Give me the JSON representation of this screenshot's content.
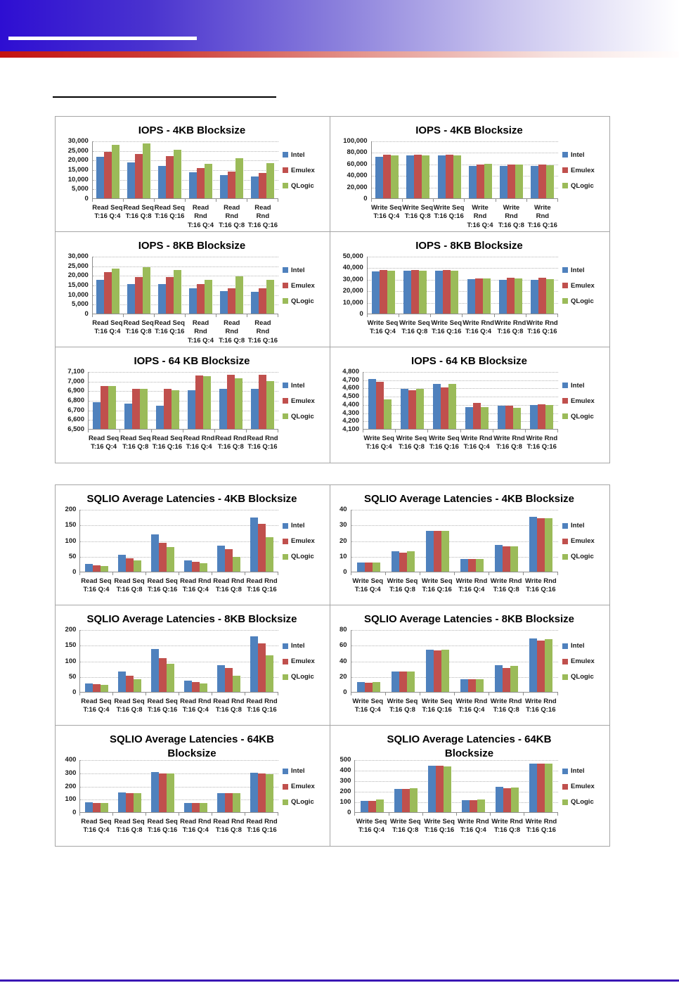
{
  "colors": {
    "intel": "#4F81BD",
    "emulex": "#C0504D",
    "qlogic": "#9BBB59",
    "gridline": "#b5b5b5",
    "axis_line": "#8f8f8f",
    "box_border": "#a6a6a6",
    "footer_rule": "#3a14b4",
    "header_blue": "#2e0ed2",
    "header_red": "#c41210"
  },
  "legend_labels": [
    "Intel",
    "Emulex",
    "QLogic"
  ],
  "chart_data": [
    {
      "id": "iops-4kb-read",
      "type": "bar",
      "title": "IOPS - 4KB Blocksize",
      "title_line2": "",
      "categories": [
        "Read Seq",
        "Read Seq",
        "Read Seq",
        "Read Rnd",
        "Read Rnd",
        "Read Rnd"
      ],
      "categories_line2": [
        "T:16 Q:4",
        "T:16 Q:8",
        "T:16 Q:16",
        "T:16 Q:4",
        "T:16 Q:8",
        "T:16 Q:16"
      ],
      "ylim": [
        0,
        30000
      ],
      "ytick_step": 5000,
      "grid": true,
      "legend_position": "right",
      "series": [
        {
          "name": "Intel",
          "color": "#4F81BD",
          "values": [
            21500,
            18500,
            16800,
            13700,
            11900,
            11500
          ]
        },
        {
          "name": "Emulex",
          "color": "#C0504D",
          "values": [
            24000,
            23200,
            21800,
            15800,
            13900,
            13300
          ]
        },
        {
          "name": "QLogic",
          "color": "#9BBB59",
          "values": [
            27800,
            28700,
            25300,
            18000,
            21000,
            18200
          ]
        }
      ]
    },
    {
      "id": "iops-4kb-write",
      "type": "bar",
      "title": "IOPS - 4KB Blocksize",
      "title_line2": "",
      "categories": [
        "Write Seq",
        "Write Seq",
        "Write Seq",
        "Write Rnd",
        "Write Rnd",
        "Write Rnd"
      ],
      "categories_line2": [
        "T:16 Q:4",
        "T:16 Q:8",
        "T:16 Q:16",
        "T:16 Q:4",
        "T:16 Q:8",
        "T:16 Q:16"
      ],
      "ylim": [
        0,
        100000
      ],
      "ytick_step": 20000,
      "grid": true,
      "legend_position": "right",
      "series": [
        {
          "name": "Intel",
          "color": "#4F81BD",
          "values": [
            72000,
            75000,
            75000,
            56000,
            56000,
            56000
          ]
        },
        {
          "name": "Emulex",
          "color": "#C0504D",
          "values": [
            76000,
            76000,
            76000,
            58500,
            58500,
            58500
          ]
        },
        {
          "name": "QLogic",
          "color": "#9BBB59",
          "values": [
            75000,
            75000,
            75000,
            60000,
            58500,
            57500
          ]
        }
      ]
    },
    {
      "id": "iops-8kb-read",
      "type": "bar",
      "title": "IOPS - 8KB Blocksize",
      "title_line2": "",
      "categories": [
        "Read Seq",
        "Read Seq",
        "Read Seq",
        "Read Rnd",
        "Read Rnd",
        "Read Rnd"
      ],
      "categories_line2": [
        "T:16 Q:4",
        "T:16 Q:8",
        "T:16 Q:16",
        "T:16 Q:4",
        "T:16 Q:8",
        "T:16 Q:16"
      ],
      "ylim": [
        0,
        30000
      ],
      "ytick_step": 5000,
      "grid": true,
      "legend_position": "right",
      "series": [
        {
          "name": "Intel",
          "color": "#4F81BD",
          "values": [
            17500,
            15200,
            15200,
            13000,
            11600,
            11300
          ]
        },
        {
          "name": "Emulex",
          "color": "#C0504D",
          "values": [
            21700,
            19000,
            19000,
            15400,
            13100,
            13100
          ]
        },
        {
          "name": "QLogic",
          "color": "#9BBB59",
          "values": [
            23500,
            24300,
            22800,
            17500,
            19300,
            17700
          ]
        }
      ]
    },
    {
      "id": "iops-8kb-write",
      "type": "bar",
      "title": "IOPS - 8KB Blocksize",
      "title_line2": "",
      "categories": [
        "Write Seq",
        "Write Seq",
        "Write Seq",
        "Write Rnd",
        "Write Rnd",
        "Write Rnd"
      ],
      "categories_line2": [
        "T:16 Q:4",
        "T:16 Q:8",
        "T:16 Q:16",
        "T:16 Q:4",
        "T:16 Q:8",
        "T:16 Q:16"
      ],
      "ylim": [
        0,
        50000
      ],
      "ytick_step": 10000,
      "grid": true,
      "legend_position": "right",
      "series": [
        {
          "name": "Intel",
          "color": "#4F81BD",
          "values": [
            36500,
            37500,
            37200,
            30000,
            29500,
            29500
          ]
        },
        {
          "name": "Emulex",
          "color": "#C0504D",
          "values": [
            38000,
            38000,
            38000,
            30300,
            31000,
            31000
          ]
        },
        {
          "name": "QLogic",
          "color": "#9BBB59",
          "values": [
            37500,
            37500,
            37500,
            30300,
            30300,
            30000
          ]
        }
      ]
    },
    {
      "id": "iops-64kb-read",
      "type": "bar",
      "title": "IOPS - 64 KB Blocksize",
      "title_line2": "",
      "categories": [
        "Read Seq",
        "Read Seq",
        "Read Seq",
        "Read Rnd",
        "Read Rnd",
        "Read Rnd"
      ],
      "categories_line2": [
        "T:16 Q:4",
        "T:16 Q:8",
        "T:16 Q:16",
        "T:16 Q:4",
        "T:16 Q:8",
        "T:16 Q:16"
      ],
      "ylim": [
        6500,
        7100
      ],
      "ytick_step": 100,
      "grid": true,
      "legend_position": "right",
      "series": [
        {
          "name": "Intel",
          "color": "#4F81BD",
          "values": [
            6780,
            6765,
            6740,
            6905,
            6920,
            6915
          ]
        },
        {
          "name": "Emulex",
          "color": "#C0504D",
          "values": [
            6945,
            6920,
            6915,
            7055,
            7065,
            7060
          ]
        },
        {
          "name": "QLogic",
          "color": "#9BBB59",
          "values": [
            6950,
            6920,
            6905,
            7050,
            7025,
            7000
          ]
        }
      ]
    },
    {
      "id": "iops-64kb-write",
      "type": "bar",
      "title": "IOPS - 64 KB Blocksize",
      "title_line2": "",
      "categories": [
        "Write Seq",
        "Write Seq",
        "Write Seq",
        "Write Rnd",
        "Write Rnd",
        "Write Rnd"
      ],
      "categories_line2": [
        "T:16 Q:4",
        "T:16 Q:8",
        "T:16 Q:16",
        "T:16 Q:4",
        "T:16 Q:8",
        "T:16 Q:16"
      ],
      "ylim": [
        4100,
        4800
      ],
      "ytick_step": 100,
      "grid": true,
      "legend_position": "right",
      "series": [
        {
          "name": "Intel",
          "color": "#4F81BD",
          "values": [
            4710,
            4590,
            4645,
            4365,
            4380,
            4390
          ]
        },
        {
          "name": "Emulex",
          "color": "#C0504D",
          "values": [
            4670,
            4570,
            4600,
            4420,
            4385,
            4400
          ]
        },
        {
          "name": "QLogic",
          "color": "#9BBB59",
          "values": [
            4460,
            4585,
            4645,
            4365,
            4355,
            4390
          ]
        }
      ]
    },
    {
      "id": "latency-4kb-read",
      "type": "bar",
      "title": "SQLIO Average Latencies - 4KB Blocksize",
      "title_line2": "",
      "categories": [
        "Read Seq",
        "Read Seq",
        "Read Seq",
        "Read Rnd",
        "Read Rnd",
        "Read Rnd"
      ],
      "categories_line2": [
        "T:16 Q:4",
        "T:16 Q:8",
        "T:16 Q:16",
        "T:16 Q:4",
        "T:16 Q:8",
        "T:16 Q:16"
      ],
      "ylim": [
        0,
        200
      ],
      "ytick_step": 50,
      "grid": true,
      "legend_position": "right",
      "series": [
        {
          "name": "Intel",
          "color": "#4F81BD",
          "values": [
            24,
            54,
            120,
            37,
            84,
            173
          ]
        },
        {
          "name": "Emulex",
          "color": "#C0504D",
          "values": [
            20,
            43,
            93,
            31,
            72,
            153
          ]
        },
        {
          "name": "QLogic",
          "color": "#9BBB59",
          "values": [
            18,
            36,
            79,
            28,
            47,
            111
          ]
        }
      ]
    },
    {
      "id": "latency-4kb-write",
      "type": "bar",
      "title": "SQLIO Average Latencies - 4KB Blocksize",
      "title_line2": "",
      "categories": [
        "Write Seq",
        "Write Seq",
        "Write Seq",
        "Write Rnd",
        "Write Rnd",
        "Write Rnd"
      ],
      "categories_line2": [
        "T:16 Q:4",
        "T:16 Q:8",
        "T:16 Q:16",
        "T:16 Q:4",
        "T:16 Q:8",
        "T:16 Q:16"
      ],
      "ylim": [
        0,
        40
      ],
      "ytick_step": 10,
      "grid": true,
      "legend_position": "right",
      "series": [
        {
          "name": "Intel",
          "color": "#4F81BD",
          "values": [
            6,
            13,
            26,
            8,
            17,
            35
          ]
        },
        {
          "name": "Emulex",
          "color": "#C0504D",
          "values": [
            6,
            12,
            26,
            8,
            16,
            34
          ]
        },
        {
          "name": "QLogic",
          "color": "#9BBB59",
          "values": [
            6,
            13,
            26,
            8,
            16,
            34
          ]
        }
      ]
    },
    {
      "id": "latency-8kb-read",
      "type": "bar",
      "title": "SQLIO Average Latencies - 8KB Blocksize",
      "title_line2": "",
      "categories": [
        "Read Seq",
        "Read Seq",
        "Read Seq",
        "Read Rnd",
        "Read Rnd",
        "Read Rnd"
      ],
      "categories_line2": [
        "T:16 Q:4",
        "T:16 Q:8",
        "T:16 Q:16",
        "T:16 Q:4",
        "T:16 Q:8",
        "T:16 Q:16"
      ],
      "ylim": [
        0,
        200
      ],
      "ytick_step": 50,
      "grid": true,
      "legend_position": "right",
      "series": [
        {
          "name": "Intel",
          "color": "#4F81BD",
          "values": [
            28,
            65,
            136,
            37,
            85,
            177
          ]
        },
        {
          "name": "Emulex",
          "color": "#C0504D",
          "values": [
            25,
            52,
            107,
            31,
            77,
            156
          ]
        },
        {
          "name": "QLogic",
          "color": "#9BBB59",
          "values": [
            23,
            41,
            89,
            28,
            52,
            116
          ]
        }
      ]
    },
    {
      "id": "latency-8kb-write",
      "type": "bar",
      "title": "SQLIO Average Latencies - 8KB Blocksize",
      "title_line2": "",
      "categories": [
        "Write Seq",
        "Write Seq",
        "Write Seq",
        "Write Rnd",
        "Write Rnd",
        "Write Rnd"
      ],
      "categories_line2": [
        "T:16 Q:4",
        "T:16 Q:8",
        "T:16 Q:16",
        "T:16 Q:4",
        "T:16 Q:8",
        "T:16 Q:16"
      ],
      "ylim": [
        0,
        80
      ],
      "ytick_step": 20,
      "grid": true,
      "legend_position": "right",
      "series": [
        {
          "name": "Intel",
          "color": "#4F81BD",
          "values": [
            13,
            26,
            54,
            16,
            34,
            68
          ]
        },
        {
          "name": "Emulex",
          "color": "#C0504D",
          "values": [
            12,
            26,
            53,
            16,
            31,
            66
          ]
        },
        {
          "name": "QLogic",
          "color": "#9BBB59",
          "values": [
            13,
            26,
            54,
            16,
            33,
            67
          ]
        }
      ]
    },
    {
      "id": "latency-64kb-read",
      "type": "bar",
      "title": "SQLIO Average Latencies - 64KB",
      "title_line2": "Blocksize",
      "categories": [
        "Read Seq",
        "Read Seq",
        "Read Seq",
        "Read Rnd",
        "Read Rnd",
        "Read Rnd"
      ],
      "categories_line2": [
        "T:16 Q:4",
        "T:16 Q:8",
        "T:16 Q:16",
        "T:16 Q:4",
        "T:16 Q:8",
        "T:16 Q:16"
      ],
      "ylim": [
        0,
        400
      ],
      "ytick_step": 100,
      "grid": true,
      "legend_position": "right",
      "series": [
        {
          "name": "Intel",
          "color": "#4F81BD",
          "values": [
            75,
            152,
            302,
            70,
            146,
            297
          ]
        },
        {
          "name": "Emulex",
          "color": "#C0504D",
          "values": [
            70,
            146,
            296,
            70,
            146,
            291
          ]
        },
        {
          "name": "QLogic",
          "color": "#9BBB59",
          "values": [
            70,
            146,
            296,
            70,
            146,
            289
          ]
        }
      ]
    },
    {
      "id": "latency-64kb-write",
      "type": "bar",
      "title": "SQLIO Average Latencies - 64KB",
      "title_line2": "Blocksize",
      "categories": [
        "Write Seq",
        "Write Seq",
        "Write Seq",
        "Write Rnd",
        "Write Rnd",
        "Write Rnd"
      ],
      "categories_line2": [
        "T:16 Q:4",
        "T:16 Q:8",
        "T:16 Q:16",
        "T:16 Q:4",
        "T:16 Q:8",
        "T:16 Q:16"
      ],
      "ylim": [
        0,
        500
      ],
      "ytick_step": 100,
      "grid": true,
      "legend_position": "right",
      "series": [
        {
          "name": "Intel",
          "color": "#4F81BD",
          "values": [
            108,
            222,
            443,
            115,
            237,
            463
          ]
        },
        {
          "name": "Emulex",
          "color": "#C0504D",
          "values": [
            107,
            222,
            443,
            115,
            228,
            462
          ]
        },
        {
          "name": "QLogic",
          "color": "#9BBB59",
          "values": [
            117,
            224,
            435,
            117,
            236,
            462
          ]
        }
      ]
    }
  ]
}
